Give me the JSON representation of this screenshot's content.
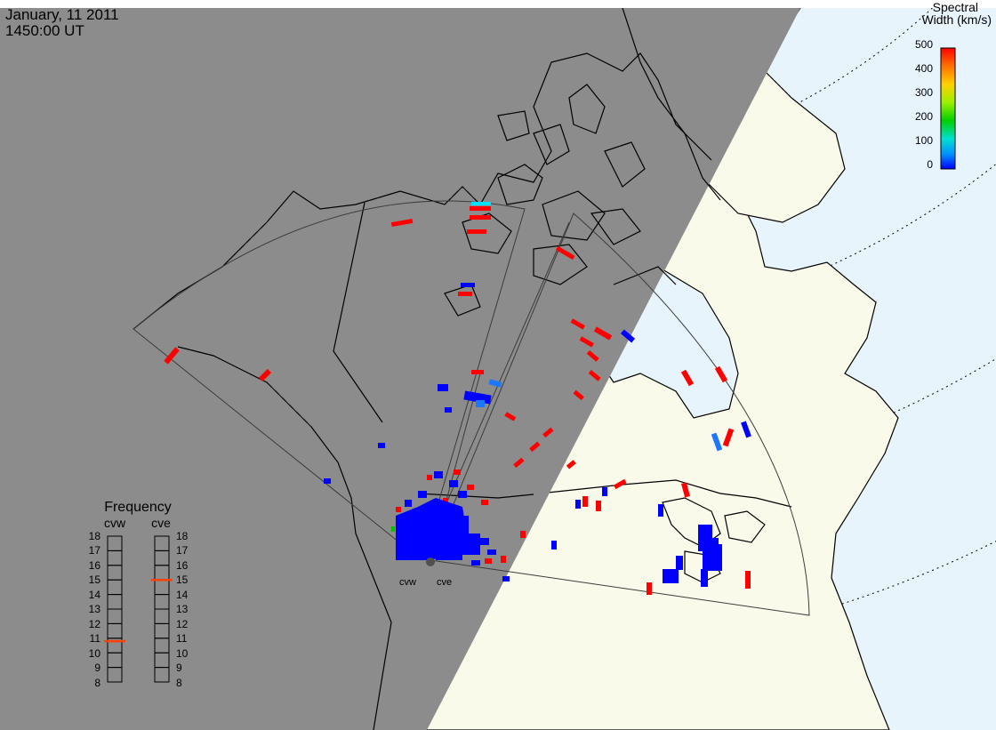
{
  "header": {
    "date": "January, 11 2011",
    "time": "1450:00 UT"
  },
  "colorbar": {
    "title_line1": "Spectral",
    "title_line2": "Width (km/s)",
    "ticks": [
      "500",
      "400",
      "300",
      "200",
      "100",
      "0"
    ],
    "colors_top_to_bottom": [
      "#ff0000",
      "#ff6a00",
      "#ffd000",
      "#9cf000",
      "#00d000",
      "#00e0d0",
      "#0090ff",
      "#0000ff"
    ]
  },
  "radars": {
    "west_label": "cvw",
    "east_label": "cve"
  },
  "frequency_panel": {
    "title": "Frequency",
    "column_left": "cvw",
    "column_right": "cve",
    "left_ticks": [
      "18",
      "17",
      "16",
      "15",
      "14",
      "13",
      "12",
      "11",
      "10",
      "9",
      "8"
    ],
    "right_ticks": [
      "18",
      "17",
      "16",
      "15",
      "14",
      "13",
      "12",
      "11",
      "10",
      "9",
      "8"
    ],
    "cvw_frequency_mhz": 10.8,
    "cve_frequency_mhz": 15.0,
    "marker_color": "#ff4000"
  },
  "colors": {
    "night": "#8c8c8c",
    "land_day": "#fafaeb",
    "ocean_day": "#e8f4fc",
    "backscatter_high": "#ff0000",
    "backscatter_low": "#0000ff",
    "backscatter_mid": "#1e78ff"
  }
}
